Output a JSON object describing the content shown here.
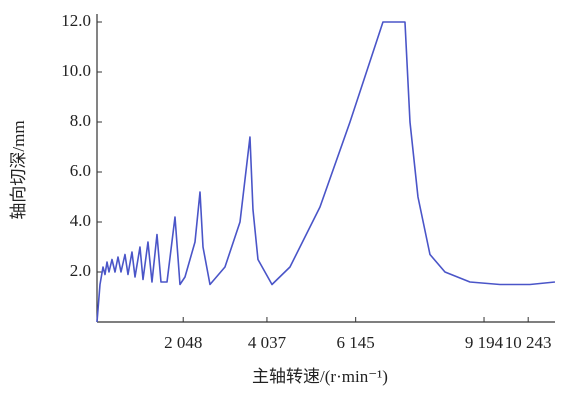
{
  "chart_data": {
    "type": "line",
    "xlabel": "主轴转速/(r·min⁻¹)",
    "ylabel": "轴向切深/mm",
    "x": [
      0,
      71,
      143,
      190,
      238,
      285,
      356,
      428,
      499,
      570,
      665,
      736,
      831,
      903,
      1021,
      1093,
      1211,
      1306,
      1425,
      1520,
      1663,
      1853,
      1971,
      2090,
      2328,
      2447,
      2518,
      2684,
      3040,
      3397,
      3634,
      3705,
      3824,
      4157,
      4584,
      5297,
      6010,
      6793,
      7316,
      7435,
      7625,
      7910,
      8266,
      8860,
      9572,
      10285,
      10879
    ],
    "series": [
      {
        "color": "#4a55c8",
        "values": [
          0,
          1.5,
          2.2,
          1.9,
          2.4,
          2.0,
          2.5,
          2.0,
          2.6,
          2.0,
          2.7,
          1.9,
          2.8,
          1.8,
          3.0,
          1.7,
          3.2,
          1.6,
          3.5,
          1.6,
          1.6,
          4.2,
          1.5,
          1.8,
          3.2,
          5.2,
          3.0,
          1.5,
          2.2,
          4.0,
          7.4,
          4.5,
          2.5,
          1.5,
          2.2,
          4.6,
          8.0,
          12.0,
          12.0,
          8.0,
          5.0,
          2.7,
          2.0,
          1.6,
          1.5,
          1.5,
          1.6
        ]
      }
    ],
    "xlim": [
      0,
      10880
    ],
    "ylim": [
      0,
      12
    ],
    "xticks": [
      {
        "value": 2048,
        "label": "2 048"
      },
      {
        "value": 4037,
        "label": "4 037"
      },
      {
        "value": 6145,
        "label": "6 145"
      },
      {
        "value": 9194,
        "label": "9 194"
      },
      {
        "value": 10243,
        "label": "10 243"
      }
    ],
    "yticks": [
      {
        "value": 2,
        "label": "2.0"
      },
      {
        "value": 4,
        "label": "4.0"
      },
      {
        "value": 6,
        "label": "6.0"
      },
      {
        "value": 8,
        "label": "8.0"
      },
      {
        "value": 10,
        "label": "10.0"
      },
      {
        "value": 12,
        "label": "12.0"
      }
    ]
  }
}
